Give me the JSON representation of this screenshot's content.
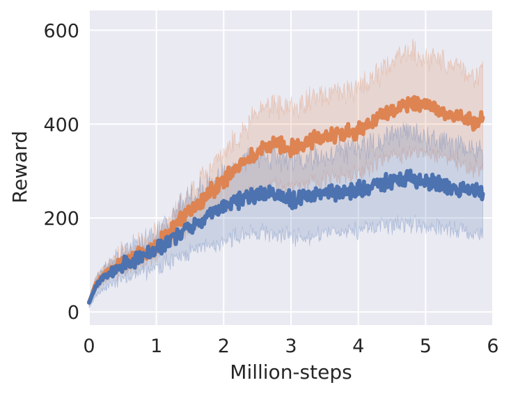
{
  "chart_data": {
    "type": "line",
    "xlabel": "Million-steps",
    "ylabel": "Reward",
    "xlim": [
      0,
      6
    ],
    "ylim": [
      -28,
      642
    ],
    "xticks": [
      0,
      1,
      2,
      3,
      4,
      5,
      6
    ],
    "yticks": [
      0,
      200,
      400,
      600
    ],
    "grid": true,
    "background": "#EAEAF2",
    "series": [
      {
        "color": "#DD8452",
        "mean": [
          [
            0,
            20
          ],
          [
            0.1,
            60
          ],
          [
            0.25,
            82
          ],
          [
            0.5,
            105
          ],
          [
            0.75,
            120
          ],
          [
            1,
            140
          ],
          [
            1.25,
            178
          ],
          [
            1.5,
            215
          ],
          [
            1.75,
            250
          ],
          [
            2,
            280
          ],
          [
            2.25,
            310
          ],
          [
            2.5,
            340
          ],
          [
            2.75,
            360
          ],
          [
            3,
            350
          ],
          [
            3.25,
            365
          ],
          [
            3.5,
            370
          ],
          [
            3.75,
            380
          ],
          [
            4,
            385
          ],
          [
            4.25,
            410
          ],
          [
            4.5,
            430
          ],
          [
            4.75,
            445
          ],
          [
            5,
            440
          ],
          [
            5.25,
            425
          ],
          [
            5.5,
            420
          ],
          [
            5.75,
            400
          ],
          [
            5.85,
            420
          ]
        ],
        "lower": [
          [
            0,
            12
          ],
          [
            0.1,
            45
          ],
          [
            0.25,
            68
          ],
          [
            0.5,
            90
          ],
          [
            0.75,
            105
          ],
          [
            1,
            122
          ],
          [
            1.25,
            150
          ],
          [
            1.5,
            180
          ],
          [
            1.75,
            205
          ],
          [
            2,
            225
          ],
          [
            2.25,
            240
          ],
          [
            2.5,
            255
          ],
          [
            2.75,
            270
          ],
          [
            3,
            265
          ],
          [
            3.25,
            275
          ],
          [
            3.5,
            280
          ],
          [
            3.75,
            290
          ],
          [
            4,
            295
          ],
          [
            4.25,
            315
          ],
          [
            4.5,
            330
          ],
          [
            4.75,
            340
          ],
          [
            5,
            340
          ],
          [
            5.25,
            330
          ],
          [
            5.5,
            320
          ],
          [
            5.75,
            300
          ],
          [
            5.85,
            310
          ]
        ],
        "upper": [
          [
            0,
            28
          ],
          [
            0.1,
            75
          ],
          [
            0.25,
            98
          ],
          [
            0.5,
            122
          ],
          [
            0.75,
            138
          ],
          [
            1,
            160
          ],
          [
            1.25,
            205
          ],
          [
            1.5,
            250
          ],
          [
            1.75,
            295
          ],
          [
            2,
            335
          ],
          [
            2.25,
            375
          ],
          [
            2.5,
            420
          ],
          [
            2.75,
            445
          ],
          [
            3,
            430
          ],
          [
            3.25,
            450
          ],
          [
            3.5,
            455
          ],
          [
            3.75,
            465
          ],
          [
            4,
            475
          ],
          [
            4.25,
            505
          ],
          [
            4.5,
            530
          ],
          [
            4.75,
            555
          ],
          [
            5,
            545
          ],
          [
            5.25,
            530
          ],
          [
            5.5,
            525
          ],
          [
            5.75,
            500
          ],
          [
            5.85,
            530
          ]
        ]
      },
      {
        "color": "#4C72B0",
        "mean": [
          [
            0,
            20
          ],
          [
            0.1,
            55
          ],
          [
            0.25,
            78
          ],
          [
            0.5,
            98
          ],
          [
            0.75,
            112
          ],
          [
            1,
            130
          ],
          [
            1.25,
            158
          ],
          [
            1.5,
            185
          ],
          [
            1.75,
            205
          ],
          [
            2,
            222
          ],
          [
            2.25,
            240
          ],
          [
            2.5,
            252
          ],
          [
            2.75,
            248
          ],
          [
            3,
            240
          ],
          [
            3.25,
            245
          ],
          [
            3.5,
            250
          ],
          [
            3.75,
            255
          ],
          [
            4,
            260
          ],
          [
            4.25,
            268
          ],
          [
            4.5,
            280
          ],
          [
            4.75,
            285
          ],
          [
            5,
            275
          ],
          [
            5.25,
            270
          ],
          [
            5.5,
            262
          ],
          [
            5.75,
            258
          ],
          [
            5.85,
            255
          ]
        ],
        "lower": [
          [
            0,
            8
          ],
          [
            0.1,
            35
          ],
          [
            0.25,
            55
          ],
          [
            0.5,
            72
          ],
          [
            0.75,
            84
          ],
          [
            1,
            95
          ],
          [
            1.25,
            112
          ],
          [
            1.5,
            128
          ],
          [
            1.75,
            140
          ],
          [
            2,
            150
          ],
          [
            2.25,
            162
          ],
          [
            2.5,
            170
          ],
          [
            2.75,
            165
          ],
          [
            3,
            160
          ],
          [
            3.25,
            163
          ],
          [
            3.5,
            165
          ],
          [
            3.75,
            170
          ],
          [
            4,
            172
          ],
          [
            4.25,
            178
          ],
          [
            4.5,
            185
          ],
          [
            4.75,
            190
          ],
          [
            5,
            183
          ],
          [
            5.25,
            180
          ],
          [
            5.5,
            175
          ],
          [
            5.75,
            170
          ],
          [
            5.85,
            165
          ]
        ],
        "upper": [
          [
            0,
            30
          ],
          [
            0.1,
            75
          ],
          [
            0.25,
            100
          ],
          [
            0.5,
            125
          ],
          [
            0.75,
            140
          ],
          [
            1,
            165
          ],
          [
            1.25,
            205
          ],
          [
            1.5,
            242
          ],
          [
            1.75,
            270
          ],
          [
            2,
            295
          ],
          [
            2.25,
            318
          ],
          [
            2.5,
            335
          ],
          [
            2.75,
            330
          ],
          [
            3,
            320
          ],
          [
            3.25,
            327
          ],
          [
            3.5,
            335
          ],
          [
            3.75,
            342
          ],
          [
            4,
            348
          ],
          [
            4.25,
            358
          ],
          [
            4.5,
            375
          ],
          [
            4.75,
            380
          ],
          [
            5,
            368
          ],
          [
            5.25,
            360
          ],
          [
            5.5,
            350
          ],
          [
            5.75,
            345
          ],
          [
            5.85,
            345
          ]
        ]
      }
    ]
  }
}
